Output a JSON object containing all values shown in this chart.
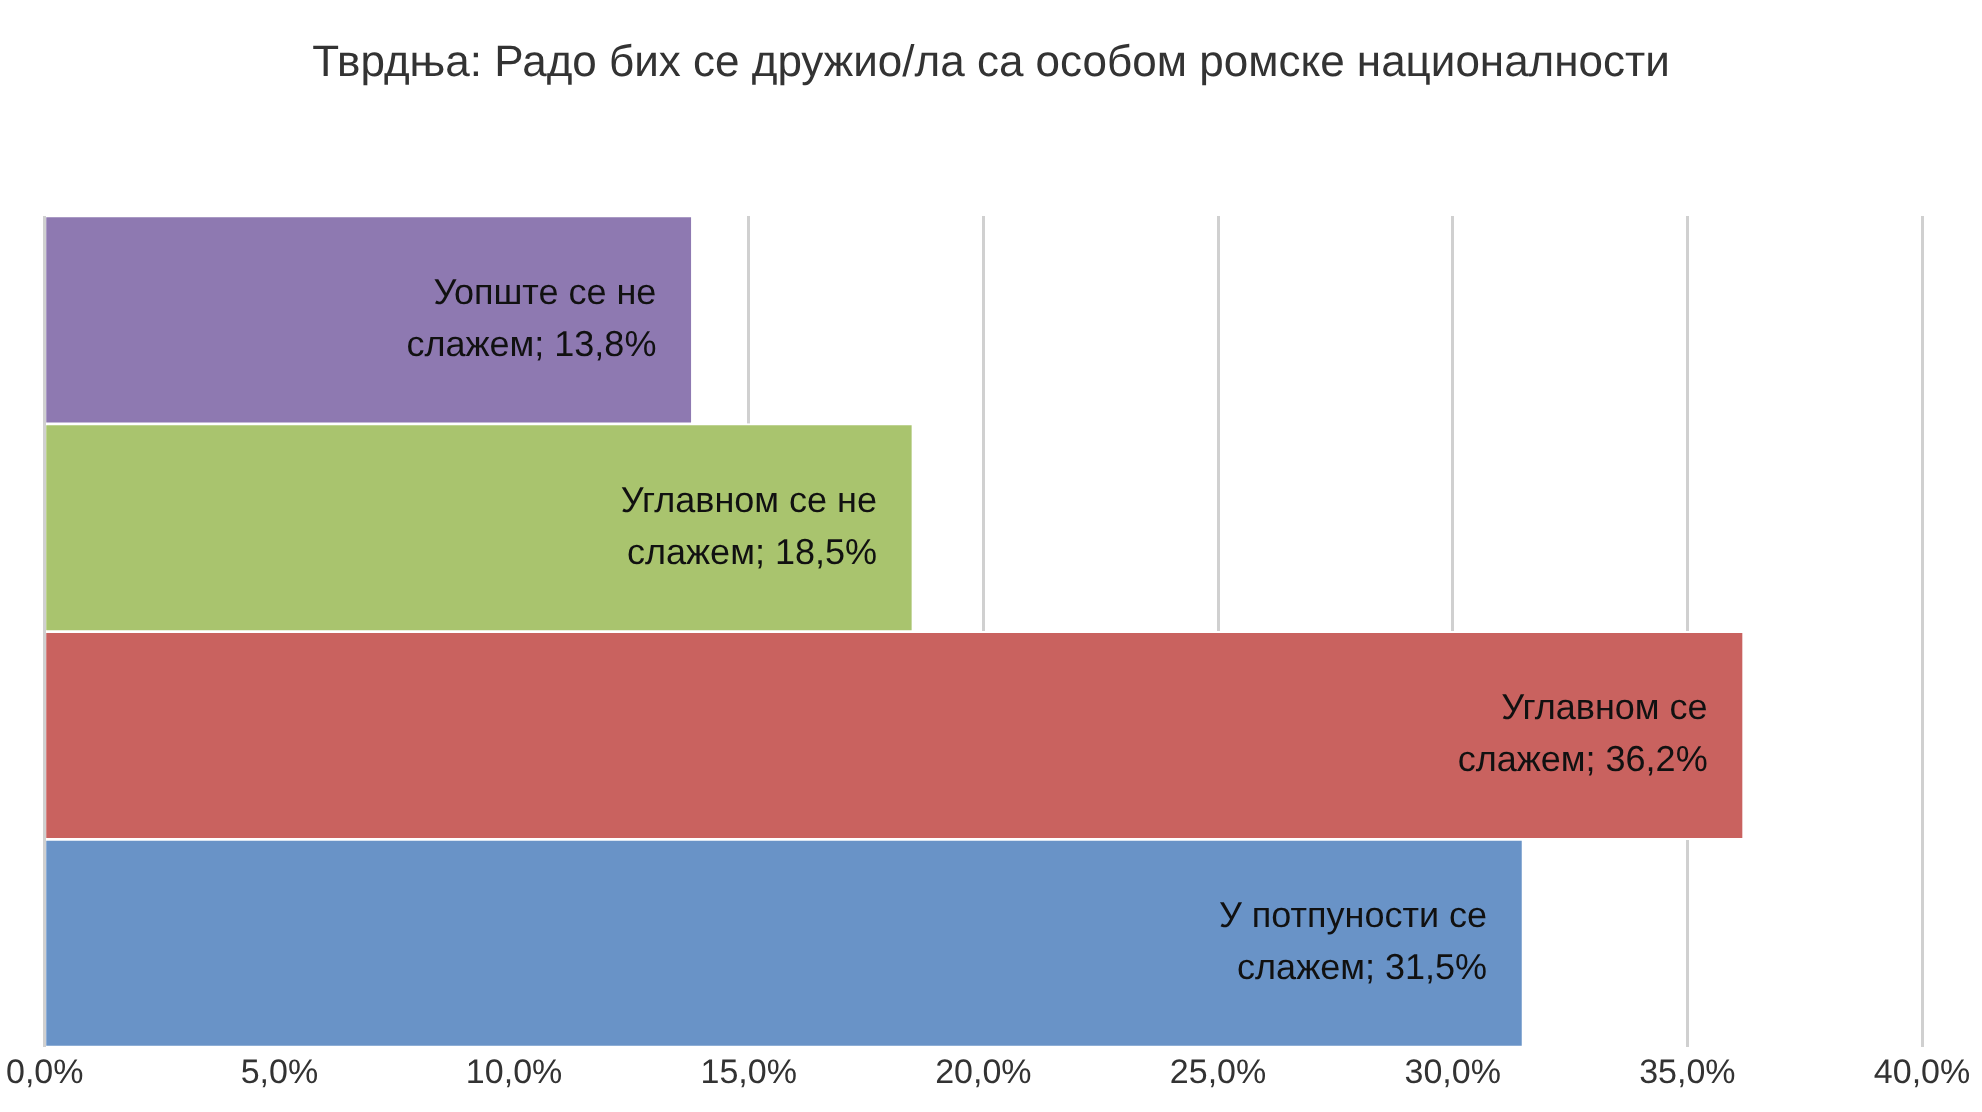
{
  "chart_data": {
    "type": "bar",
    "orientation": "horizontal",
    "title": "Тврдња: Радо бих се дружио/ла са особом ромске националности",
    "categories": [
      null,
      null,
      null,
      null
    ],
    "values": [
      13.8,
      18.5,
      36.2,
      31.5
    ],
    "colors": [
      "#8e79b1",
      "#a9c46e",
      "#c9625f",
      "#6993c7"
    ],
    "value_labels": [
      "Уопште се не слажем; 13,8%",
      "Углавном се не слажем; 18,5%",
      "Углавном се слажем; 36,2%",
      "У потпуности се слажем; 31,5%"
    ],
    "xlim": [
      0,
      40
    ],
    "xticks": [
      {
        "value": 0,
        "label": "0,0%"
      },
      {
        "value": 5,
        "label": "5,0%"
      },
      {
        "value": 10,
        "label": "10,0%"
      },
      {
        "value": 15,
        "label": "15,0%"
      },
      {
        "value": 20,
        "label": "20,0%"
      },
      {
        "value": 25,
        "label": "25,0%"
      },
      {
        "value": 30,
        "label": "30,0%"
      },
      {
        "value": 35,
        "label": "35,0%"
      },
      {
        "value": 40,
        "label": "40,0%"
      }
    ],
    "grid": "x",
    "tick_labels": "x",
    "legend": false
  }
}
